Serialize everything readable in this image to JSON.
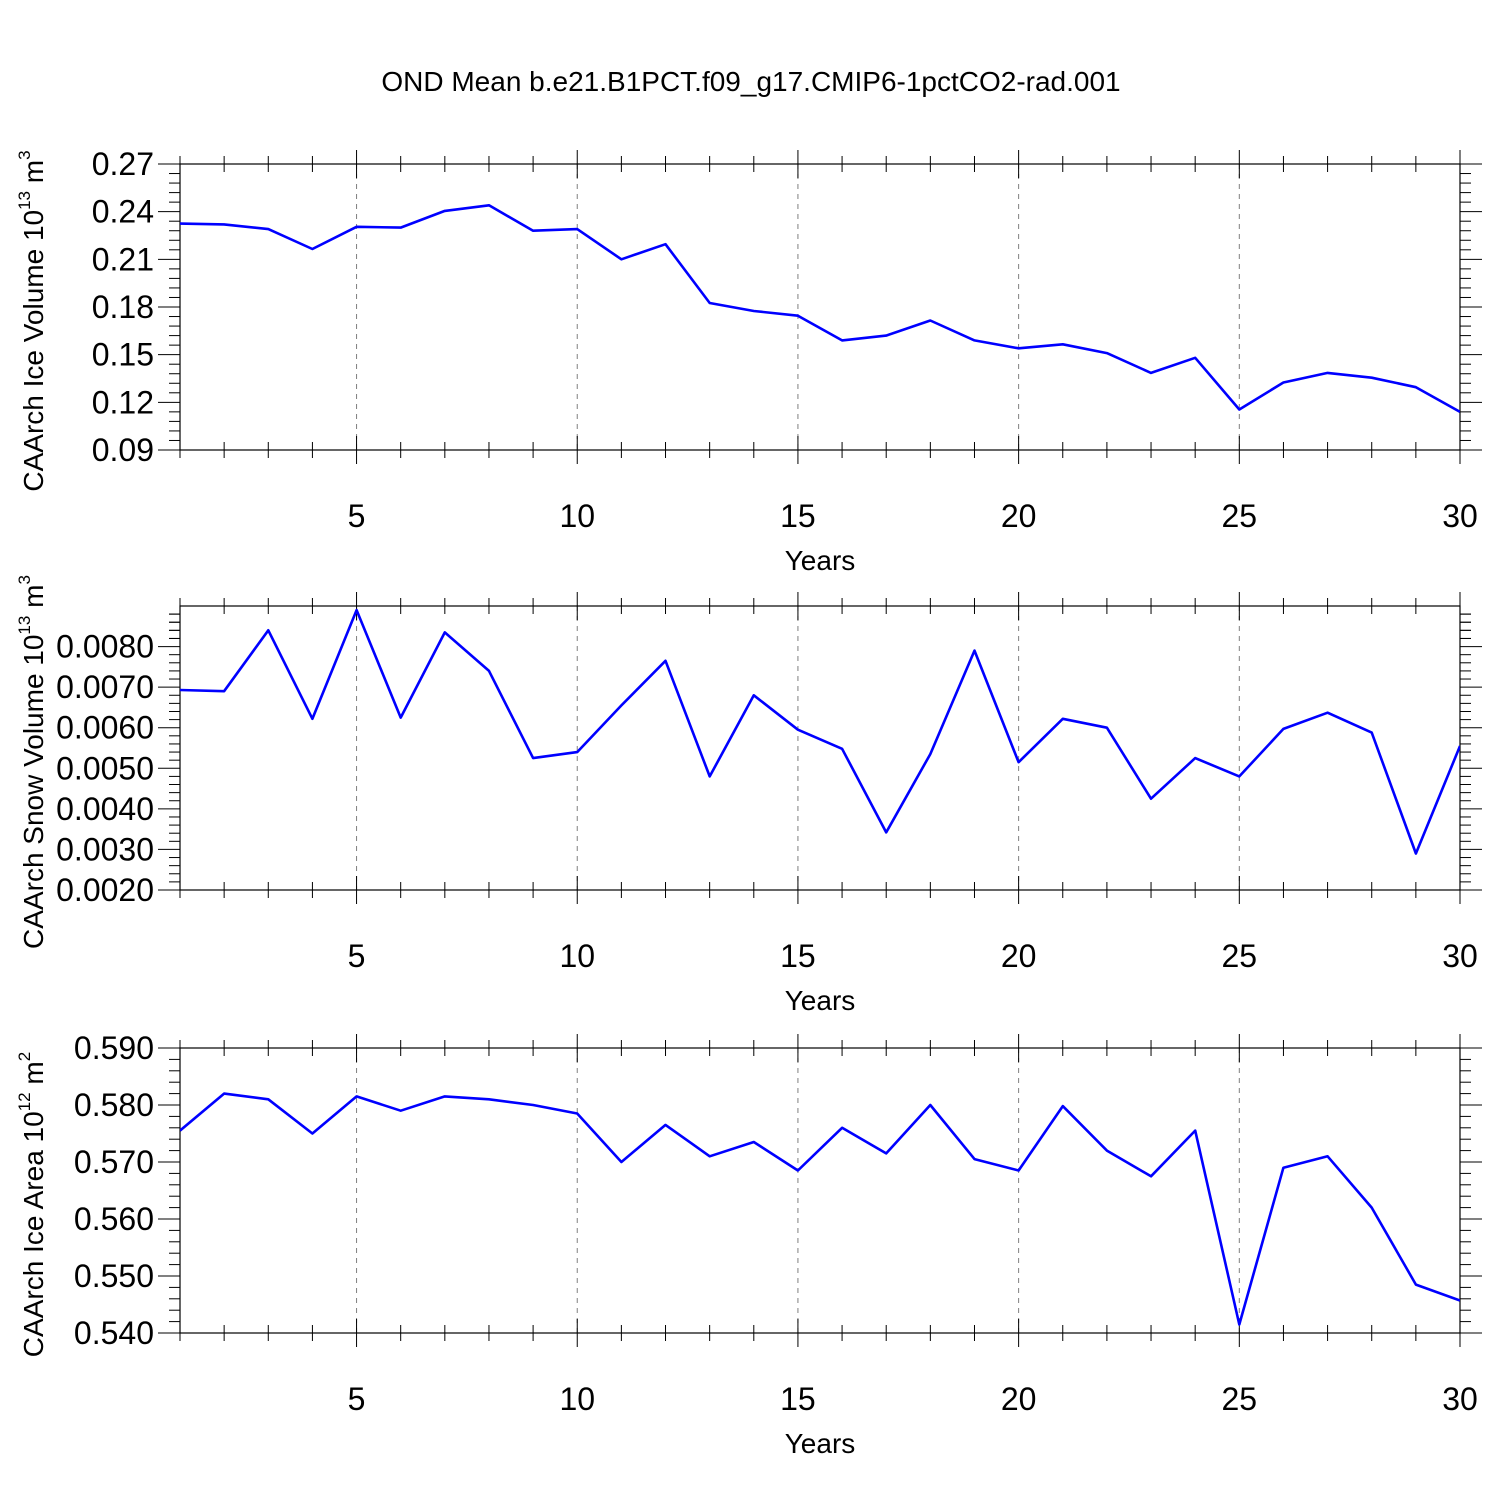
{
  "title": "OND Mean b.e21.B1PCT.f09_g17.CMIP6-1pctCO2-rad.001",
  "colors": {
    "line": "#0000ff",
    "frame": "#000000",
    "grid": "#808080"
  },
  "chart_data": [
    {
      "type": "line",
      "xlabel": "Years",
      "ylabel": {
        "text": "CAArch Ice Volume 10",
        "exponent": "13",
        "unit": " m",
        "unit_exponent": "3"
      },
      "xlim": [
        1,
        30
      ],
      "ylim": [
        0.09,
        0.27
      ],
      "x_ticks": [
        5,
        10,
        15,
        20,
        25,
        30
      ],
      "y_ticks": [
        0.09,
        0.12,
        0.15,
        0.18,
        0.21,
        0.24,
        0.27
      ],
      "y_tick_labels": [
        "0.09",
        "0.12",
        "0.15",
        "0.18",
        "0.21",
        "0.24",
        "0.27"
      ],
      "x": [
        1,
        2,
        3,
        4,
        5,
        6,
        7,
        8,
        9,
        10,
        11,
        12,
        13,
        14,
        15,
        16,
        17,
        18,
        19,
        20,
        21,
        22,
        23,
        24,
        25,
        26,
        27,
        28,
        29,
        30
      ],
      "values": [
        0.2325,
        0.232,
        0.229,
        0.2165,
        0.2305,
        0.23,
        0.2405,
        0.244,
        0.228,
        0.229,
        0.21,
        0.2195,
        0.1825,
        0.1775,
        0.1745,
        0.159,
        0.162,
        0.1715,
        0.159,
        0.154,
        0.1565,
        0.151,
        0.1385,
        0.148,
        0.1155,
        0.1325,
        0.1385,
        0.1355,
        0.1295,
        0.114
      ]
    },
    {
      "type": "line",
      "xlabel": "Years",
      "ylabel": {
        "text": "CAArch Snow Volume 10",
        "exponent": "13",
        "unit": " m",
        "unit_exponent": "3"
      },
      "xlim": [
        1,
        30
      ],
      "ylim": [
        0.002,
        0.009
      ],
      "x_ticks": [
        5,
        10,
        15,
        20,
        25,
        30
      ],
      "y_ticks": [
        0.002,
        0.003,
        0.004,
        0.005,
        0.006,
        0.007,
        0.008
      ],
      "y_tick_labels": [
        "0.0020",
        "0.0030",
        "0.0040",
        "0.0050",
        "0.0060",
        "0.0070",
        "0.0080"
      ],
      "x": [
        1,
        2,
        3,
        4,
        5,
        6,
        7,
        8,
        9,
        10,
        11,
        12,
        13,
        14,
        15,
        16,
        17,
        18,
        19,
        20,
        21,
        22,
        23,
        24,
        25,
        26,
        27,
        28,
        29,
        30
      ],
      "values": [
        0.00693,
        0.0069,
        0.0084,
        0.00622,
        0.0089,
        0.00625,
        0.00835,
        0.0074,
        0.00525,
        0.0054,
        0.00655,
        0.00765,
        0.0048,
        0.0068,
        0.00595,
        0.00548,
        0.00342,
        0.00535,
        0.0079,
        0.00515,
        0.00622,
        0.006,
        0.00425,
        0.00525,
        0.0048,
        0.00597,
        0.00637,
        0.00588,
        0.0029,
        0.00555
      ]
    },
    {
      "type": "line",
      "xlabel": "Years",
      "ylabel": {
        "text": "CAArch Ice Area 10",
        "exponent": "12",
        "unit": " m",
        "unit_exponent": "2"
      },
      "xlim": [
        1,
        30
      ],
      "ylim": [
        0.54,
        0.59
      ],
      "x_ticks": [
        5,
        10,
        15,
        20,
        25,
        30
      ],
      "y_ticks": [
        0.54,
        0.55,
        0.56,
        0.57,
        0.58,
        0.59
      ],
      "y_tick_labels": [
        "0.540",
        "0.550",
        "0.560",
        "0.570",
        "0.580",
        "0.590"
      ],
      "x": [
        1,
        2,
        3,
        4,
        5,
        6,
        7,
        8,
        9,
        10,
        11,
        12,
        13,
        14,
        15,
        16,
        17,
        18,
        19,
        20,
        21,
        22,
        23,
        24,
        25,
        26,
        27,
        28,
        29,
        30
      ],
      "values": [
        0.5755,
        0.582,
        0.581,
        0.575,
        0.5815,
        0.579,
        0.5815,
        0.581,
        0.58,
        0.5785,
        0.57,
        0.5765,
        0.571,
        0.5735,
        0.5685,
        0.576,
        0.5715,
        0.58,
        0.5705,
        0.5685,
        0.5798,
        0.572,
        0.5675,
        0.5755,
        0.5415,
        0.569,
        0.571,
        0.562,
        0.5485,
        0.5457
      ]
    }
  ]
}
